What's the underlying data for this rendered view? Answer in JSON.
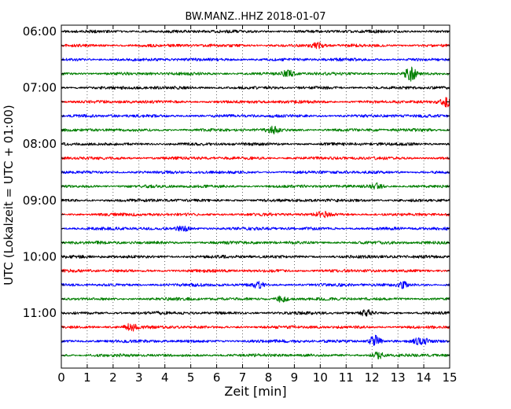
{
  "chart_data": {
    "type": "line",
    "title": "BW.MANZ..HHZ 2018-01-07",
    "xlabel": "Zeit  [min]",
    "ylabel": "UTC (Lokalzeit = UTC + 01:00)",
    "xlim": [
      0,
      15
    ],
    "x_ticks": [
      "0",
      "1",
      "2",
      "3",
      "4",
      "5",
      "6",
      "7",
      "8",
      "9",
      "10",
      "11",
      "12",
      "13",
      "14",
      "15"
    ],
    "y_tick_labels": [
      "06:00",
      "07:00",
      "08:00",
      "09:00",
      "10:00",
      "11:00"
    ],
    "grid": "vertical dotted at every minute",
    "trace_colors": [
      "#000000",
      "#ff0000",
      "#0000ff",
      "#007f00"
    ],
    "traces": [
      {
        "start": "06:00",
        "color": "#000000"
      },
      {
        "start": "06:15",
        "color": "#ff0000"
      },
      {
        "start": "06:30",
        "color": "#0000ff"
      },
      {
        "start": "06:45",
        "color": "#007f00"
      },
      {
        "start": "07:00",
        "color": "#000000"
      },
      {
        "start": "07:15",
        "color": "#ff0000"
      },
      {
        "start": "07:30",
        "color": "#0000ff"
      },
      {
        "start": "07:45",
        "color": "#007f00"
      },
      {
        "start": "08:00",
        "color": "#000000"
      },
      {
        "start": "08:15",
        "color": "#ff0000"
      },
      {
        "start": "08:30",
        "color": "#0000ff"
      },
      {
        "start": "08:45",
        "color": "#007f00"
      },
      {
        "start": "09:00",
        "color": "#000000"
      },
      {
        "start": "09:15",
        "color": "#ff0000"
      },
      {
        "start": "09:30",
        "color": "#0000ff"
      },
      {
        "start": "09:45",
        "color": "#007f00"
      },
      {
        "start": "10:00",
        "color": "#000000"
      },
      {
        "start": "10:15",
        "color": "#ff0000"
      },
      {
        "start": "10:30",
        "color": "#0000ff"
      },
      {
        "start": "10:45",
        "color": "#007f00"
      },
      {
        "start": "11:00",
        "color": "#000000"
      },
      {
        "start": "11:15",
        "color": "#ff0000"
      },
      {
        "start": "11:30",
        "color": "#0000ff"
      },
      {
        "start": "11:45",
        "color": "#007f00"
      }
    ],
    "events": [
      {
        "trace": 1,
        "minute": 9.9,
        "strength": 1.2
      },
      {
        "trace": 3,
        "minute": 8.75,
        "strength": 1.3
      },
      {
        "trace": 3,
        "minute": 13.5,
        "strength": 2.6
      },
      {
        "trace": 5,
        "minute": 14.9,
        "strength": 1.6
      },
      {
        "trace": 7,
        "minute": 8.2,
        "strength": 1.2
      },
      {
        "trace": 11,
        "minute": 12.2,
        "strength": 1.1
      },
      {
        "trace": 13,
        "minute": 10.1,
        "strength": 1.2
      },
      {
        "trace": 14,
        "minute": 4.7,
        "strength": 1.0
      },
      {
        "trace": 18,
        "minute": 7.6,
        "strength": 1.0
      },
      {
        "trace": 18,
        "minute": 13.2,
        "strength": 1.0
      },
      {
        "trace": 19,
        "minute": 8.5,
        "strength": 1.3
      },
      {
        "trace": 20,
        "minute": 11.8,
        "strength": 1.0
      },
      {
        "trace": 21,
        "minute": 2.7,
        "strength": 1.2
      },
      {
        "trace": 22,
        "minute": 12.1,
        "strength": 2.2
      },
      {
        "trace": 22,
        "minute": 13.9,
        "strength": 1.6
      },
      {
        "trace": 23,
        "minute": 12.2,
        "strength": 1.3
      }
    ]
  }
}
